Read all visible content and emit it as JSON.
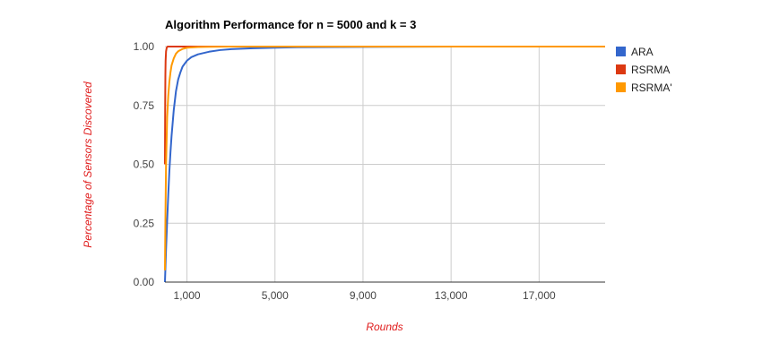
{
  "chart_data": {
    "type": "line",
    "title": "Algorithm Performance for n = 5000 and k = 3",
    "xlabel": "Rounds",
    "ylabel": "Percentage of Sensors Discovered",
    "xlim": [
      0,
      20000
    ],
    "ylim": [
      0,
      1
    ],
    "x_ticks": [
      1000,
      5000,
      9000,
      13000,
      17000
    ],
    "x_tick_labels": [
      "1,000",
      "5,000",
      "9,000",
      "13,000",
      "17,000"
    ],
    "y_ticks": [
      0,
      0.25,
      0.5,
      0.75,
      1
    ],
    "y_tick_labels": [
      "0.00",
      "0.25",
      "0.50",
      "0.75",
      "1.00"
    ],
    "grid": true,
    "legend_position": "right",
    "series": [
      {
        "name": "ARA",
        "color": "#3366cc",
        "x": [
          0,
          25,
          50,
          100,
          150,
          200,
          250,
          300,
          400,
          500,
          600,
          700,
          800,
          1000,
          1200,
          1500,
          2000,
          2500,
          3000,
          4000,
          5000,
          6000,
          8000,
          10000,
          14000,
          20000
        ],
        "y": [
          0.0,
          0.07,
          0.14,
          0.26,
          0.37,
          0.47,
          0.55,
          0.62,
          0.73,
          0.81,
          0.86,
          0.89,
          0.915,
          0.94,
          0.955,
          0.967,
          0.978,
          0.985,
          0.989,
          0.993,
          0.995,
          0.997,
          0.998,
          0.999,
          1.0,
          1.0
        ]
      },
      {
        "name": "RSRMA",
        "color": "#dc3912",
        "x": [
          0,
          5,
          10,
          20,
          30,
          50,
          80,
          120,
          200,
          500,
          1000,
          5000,
          20000
        ],
        "y": [
          0.5,
          0.62,
          0.75,
          0.88,
          0.94,
          0.98,
          0.995,
          1.0,
          1.0,
          1.0,
          1.0,
          1.0,
          1.0
        ]
      },
      {
        "name": "RSRMA'",
        "color": "#ff9900",
        "x": [
          0,
          25,
          50,
          100,
          150,
          200,
          250,
          300,
          400,
          500,
          600,
          800,
          1000,
          1500,
          2000,
          3000,
          5000,
          10000,
          20000
        ],
        "y": [
          0.05,
          0.3,
          0.5,
          0.7,
          0.79,
          0.85,
          0.89,
          0.92,
          0.95,
          0.97,
          0.98,
          0.99,
          0.995,
          0.998,
          0.999,
          1.0,
          1.0,
          1.0,
          1.0
        ]
      }
    ]
  }
}
